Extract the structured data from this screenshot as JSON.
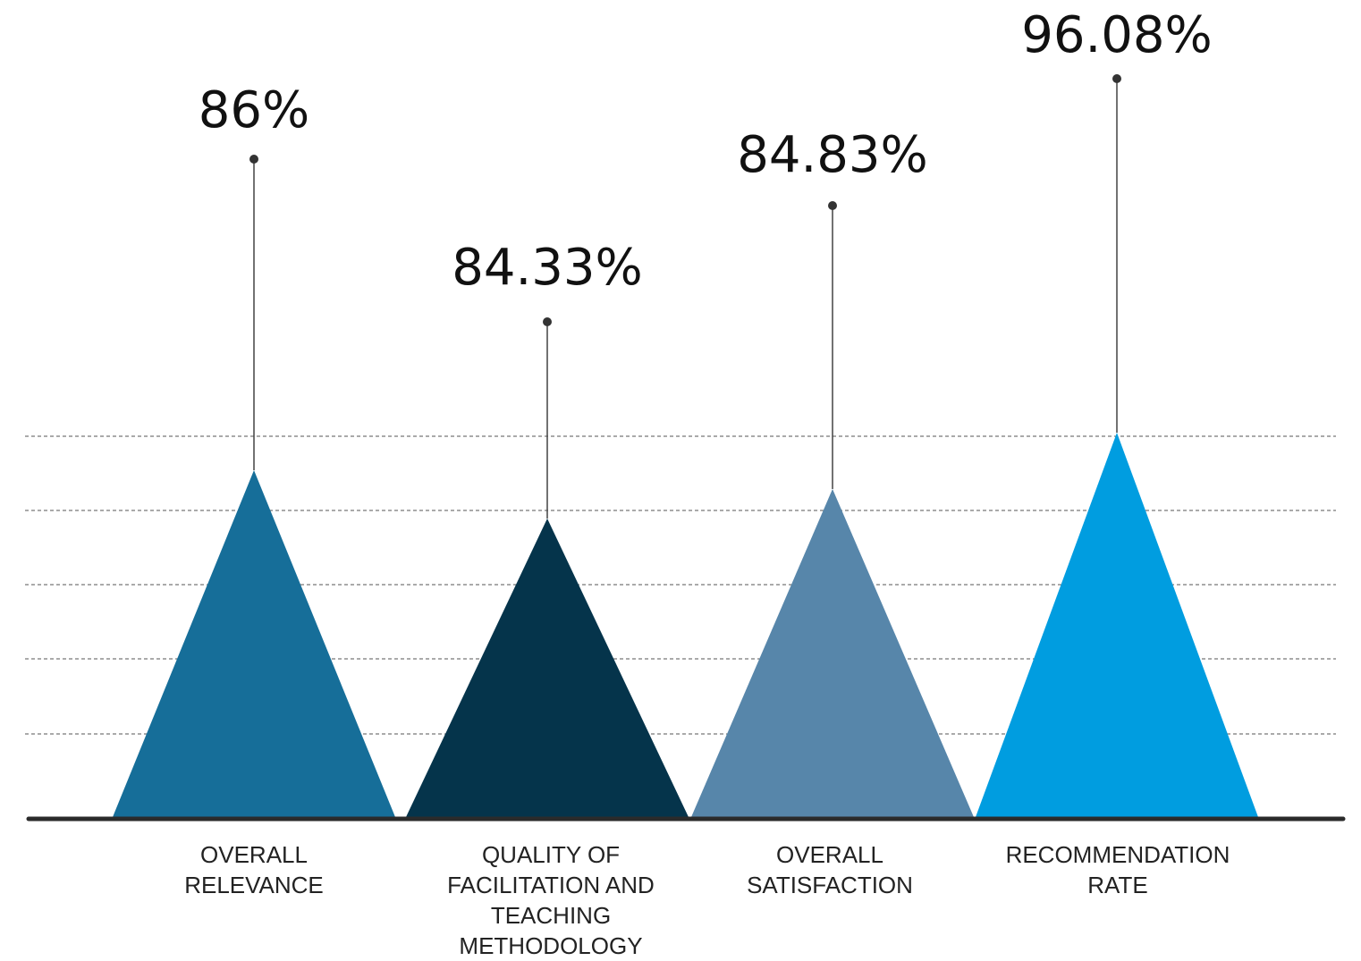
{
  "chart_data": {
    "type": "bar",
    "title": "",
    "xlabel": "",
    "ylabel": "",
    "categories": [
      [
        "OVERALL",
        "RELEVANCE"
      ],
      [
        "QUALITY OF",
        "FACILITATION AND",
        "TEACHING",
        "METHODOLOGY"
      ],
      [
        "OVERALL",
        "SATISFACTION"
      ],
      [
        "RECOMMENDATION",
        "RATE"
      ]
    ],
    "values": [
      86,
      84.33,
      84.83,
      96.08
    ],
    "value_labels": [
      "86%",
      "84.33%",
      "84.83%",
      "96.08%"
    ],
    "colors": [
      "#166e99",
      "#05344b",
      "#5786aa",
      "#009de0"
    ],
    "grid": true,
    "legend": "none"
  }
}
